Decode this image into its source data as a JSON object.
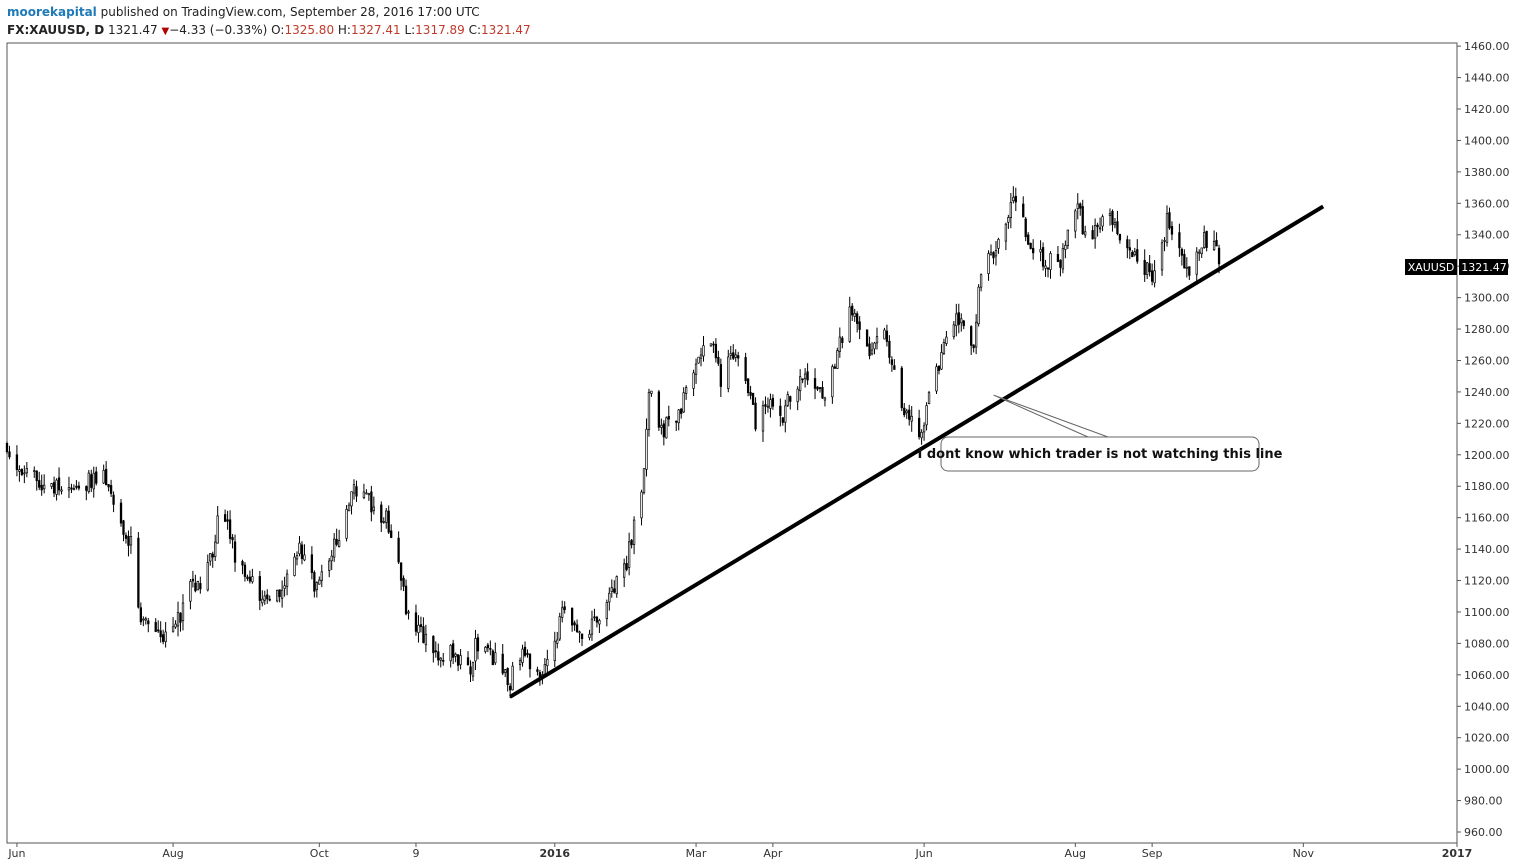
{
  "header": {
    "author": "moorekapital",
    "published": "published on TradingView.com, September 28, 2016 17:00 UTC",
    "symbol": "FX:XAUUSD, D",
    "last": "1321.47",
    "arrow": "▼",
    "change": "−4.33 (−0.33%)",
    "o_label": "O:",
    "o_value": "1325.80",
    "h_label": "H:",
    "h_value": "1327.41",
    "l_label": "L:",
    "l_value": "1317.89",
    "c_label": "C:",
    "c_value": "1321.47"
  },
  "colors": {
    "text_red": "#c0392b",
    "author_blue": "#1f7ab8",
    "candle": "#000000",
    "label_bg": "#000000"
  },
  "chart_data": {
    "type": "candlestick",
    "y_ticks": [
      960,
      980,
      1000,
      1020,
      1040,
      1060,
      1080,
      1100,
      1120,
      1140,
      1160,
      1180,
      1200,
      1220,
      1240,
      1260,
      1280,
      1300,
      1320,
      1340,
      1360,
      1380,
      1400,
      1420,
      1440,
      1460
    ],
    "ylim": [
      953,
      1462
    ],
    "x_ticks": [
      {
        "label": "Jun",
        "date": "2015-06-01"
      },
      {
        "label": "Aug",
        "date": "2015-08-03"
      },
      {
        "label": "Oct",
        "date": "2015-10-01"
      },
      {
        "label": "9",
        "date": "2015-11-09"
      },
      {
        "label": "2016",
        "date": "2016-01-04"
      },
      {
        "label": "Mar",
        "date": "2016-03-01"
      },
      {
        "label": "Apr",
        "date": "2016-04-01"
      },
      {
        "label": "Jun",
        "date": "2016-06-01"
      },
      {
        "label": "Aug",
        "date": "2016-08-01"
      },
      {
        "label": "Sep",
        "date": "2016-09-01"
      },
      {
        "label": "Nov",
        "date": "2016-11-01"
      },
      {
        "label": "2017",
        "date": "2017-01-02"
      }
    ],
    "xlim": [
      "2015-05-28",
      "2017-01-02"
    ],
    "close_path": [
      [
        "2015-05-28",
        1207
      ],
      [
        "2015-06-03",
        1188
      ],
      [
        "2015-06-10",
        1183
      ],
      [
        "2015-06-17",
        1180
      ],
      [
        "2015-06-22",
        1175
      ],
      [
        "2015-06-29",
        1183
      ],
      [
        "2015-07-06",
        1190
      ],
      [
        "2015-07-10",
        1168
      ],
      [
        "2015-07-14",
        1155
      ],
      [
        "2015-07-18",
        1140
      ],
      [
        "2015-07-20",
        1100
      ],
      [
        "2015-07-24",
        1095
      ],
      [
        "2015-07-30",
        1085
      ],
      [
        "2015-08-05",
        1095
      ],
      [
        "2015-08-11",
        1120
      ],
      [
        "2015-08-14",
        1118
      ],
      [
        "2015-08-19",
        1140
      ],
      [
        "2015-08-21",
        1160
      ],
      [
        "2015-08-24",
        1158
      ],
      [
        "2015-08-28",
        1135
      ],
      [
        "2015-09-02",
        1125
      ],
      [
        "2015-09-08",
        1110
      ],
      [
        "2015-09-11",
        1105
      ],
      [
        "2015-09-16",
        1118
      ],
      [
        "2015-09-22",
        1140
      ],
      [
        "2015-09-25",
        1135
      ],
      [
        "2015-09-30",
        1115
      ],
      [
        "2015-10-05",
        1135
      ],
      [
        "2015-10-08",
        1145
      ],
      [
        "2015-10-12",
        1160
      ],
      [
        "2015-10-14",
        1180
      ],
      [
        "2015-10-19",
        1175
      ],
      [
        "2015-10-23",
        1165
      ],
      [
        "2015-10-28",
        1160
      ],
      [
        "2015-11-02",
        1130
      ],
      [
        "2015-11-06",
        1095
      ],
      [
        "2015-11-12",
        1085
      ],
      [
        "2015-11-18",
        1075
      ],
      [
        "2015-11-25",
        1072
      ],
      [
        "2015-12-01",
        1065
      ],
      [
        "2015-12-03",
        1078
      ],
      [
        "2015-12-08",
        1073
      ],
      [
        "2015-12-14",
        1066
      ],
      [
        "2015-12-17",
        1055
      ],
      [
        "2015-12-21",
        1075
      ],
      [
        "2015-12-24",
        1068
      ],
      [
        "2015-12-30",
        1060
      ],
      [
        "2016-01-06",
        1092
      ],
      [
        "2016-01-08",
        1102
      ],
      [
        "2016-01-13",
        1085
      ],
      [
        "2016-01-19",
        1092
      ],
      [
        "2016-01-25",
        1103
      ],
      [
        "2016-01-28",
        1115
      ],
      [
        "2016-02-02",
        1130
      ],
      [
        "2016-02-05",
        1157
      ],
      [
        "2016-02-09",
        1190
      ],
      [
        "2016-02-11",
        1240
      ],
      [
        "2016-02-16",
        1215
      ],
      [
        "2016-02-22",
        1225
      ],
      [
        "2016-02-26",
        1238
      ],
      [
        "2016-03-03",
        1265
      ],
      [
        "2016-03-08",
        1265
      ],
      [
        "2016-03-11",
        1248
      ],
      [
        "2016-03-16",
        1265
      ],
      [
        "2016-03-21",
        1245
      ],
      [
        "2016-03-25",
        1220
      ],
      [
        "2016-03-30",
        1230
      ],
      [
        "2016-04-05",
        1225
      ],
      [
        "2016-04-08",
        1238
      ],
      [
        "2016-04-13",
        1250
      ],
      [
        "2016-04-18",
        1245
      ],
      [
        "2016-04-22",
        1240
      ],
      [
        "2016-04-27",
        1265
      ],
      [
        "2016-05-02",
        1292
      ],
      [
        "2016-05-06",
        1285
      ],
      [
        "2016-05-10",
        1265
      ],
      [
        "2016-05-16",
        1275
      ],
      [
        "2016-05-20",
        1252
      ],
      [
        "2016-05-25",
        1225
      ],
      [
        "2016-05-31",
        1212
      ],
      [
        "2016-06-03",
        1240
      ],
      [
        "2016-06-08",
        1262
      ],
      [
        "2016-06-13",
        1285
      ],
      [
        "2016-06-16",
        1282
      ],
      [
        "2016-06-21",
        1268
      ],
      [
        "2016-06-24",
        1320
      ],
      [
        "2016-06-30",
        1330
      ],
      [
        "2016-07-06",
        1362
      ],
      [
        "2016-07-11",
        1350
      ],
      [
        "2016-07-14",
        1330
      ],
      [
        "2016-07-20",
        1325
      ],
      [
        "2016-07-25",
        1318
      ],
      [
        "2016-07-28",
        1335
      ],
      [
        "2016-08-02",
        1358
      ],
      [
        "2016-08-05",
        1340
      ],
      [
        "2016-08-11",
        1345
      ],
      [
        "2016-08-16",
        1350
      ],
      [
        "2016-08-19",
        1338
      ],
      [
        "2016-08-24",
        1328
      ],
      [
        "2016-08-29",
        1320
      ],
      [
        "2016-09-02",
        1312
      ],
      [
        "2016-09-07",
        1348
      ],
      [
        "2016-09-12",
        1328
      ],
      [
        "2016-09-16",
        1315
      ],
      [
        "2016-09-21",
        1335
      ],
      [
        "2016-09-26",
        1339
      ],
      [
        "2016-09-28",
        1321.47
      ]
    ],
    "trendline": {
      "start": [
        "2015-12-17",
        1046
      ],
      "end": [
        "2016-11-09",
        1358
      ]
    },
    "price_label": {
      "symbol": "XAUUSD",
      "value": "1321.47"
    },
    "annotation": {
      "text": "I dont know which trader is not watching this line",
      "point": [
        "2016-06-29",
        1238
      ]
    }
  }
}
